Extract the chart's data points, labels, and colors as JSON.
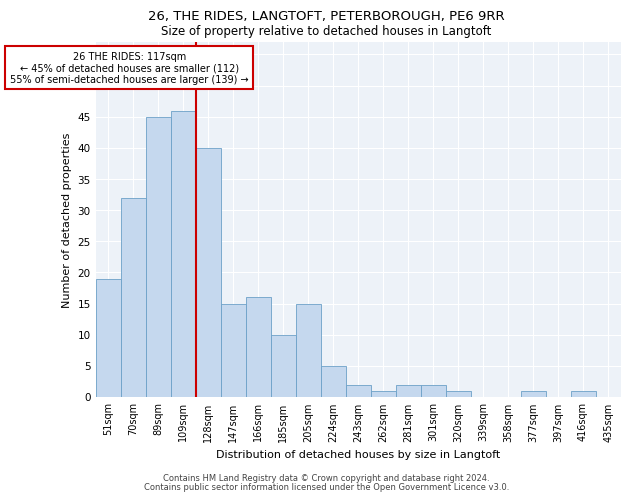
{
  "title": "26, THE RIDES, LANGTOFT, PETERBOROUGH, PE6 9RR",
  "subtitle": "Size of property relative to detached houses in Langtoft",
  "xlabel": "Distribution of detached houses by size in Langtoft",
  "ylabel": "Number of detached properties",
  "categories": [
    "51sqm",
    "70sqm",
    "89sqm",
    "109sqm",
    "128sqm",
    "147sqm",
    "166sqm",
    "185sqm",
    "205sqm",
    "224sqm",
    "243sqm",
    "262sqm",
    "281sqm",
    "301sqm",
    "320sqm",
    "339sqm",
    "358sqm",
    "377sqm",
    "397sqm",
    "416sqm",
    "435sqm"
  ],
  "values": [
    19,
    32,
    45,
    46,
    40,
    15,
    16,
    10,
    15,
    5,
    2,
    1,
    2,
    2,
    1,
    0,
    0,
    1,
    0,
    1,
    0
  ],
  "bar_color": "#c5d8ee",
  "bar_edge_color": "#6ca0c8",
  "red_line_x": 3.5,
  "annotation_title": "26 THE RIDES: 117sqm",
  "annotation_line1": "← 45% of detached houses are smaller (112)",
  "annotation_line2": "55% of semi-detached houses are larger (139) →",
  "annotation_box_edge": "#cc0000",
  "ylim": [
    0,
    57
  ],
  "yticks": [
    0,
    5,
    10,
    15,
    20,
    25,
    30,
    35,
    40,
    45,
    50,
    55
  ],
  "background_color": "#edf2f8",
  "footer_line1": "Contains HM Land Registry data © Crown copyright and database right 2024.",
  "footer_line2": "Contains public sector information licensed under the Open Government Licence v3.0."
}
